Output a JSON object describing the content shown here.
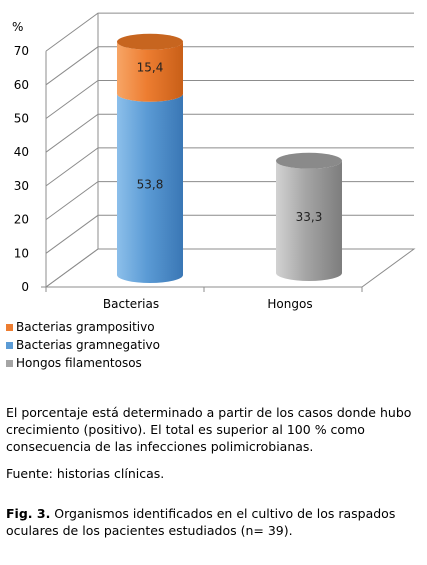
{
  "chart_data": {
    "type": "bar",
    "stacked": true,
    "three_d": true,
    "ylabel": "%",
    "ylim": [
      0,
      70
    ],
    "yticks": [
      "0",
      "10",
      "20",
      "30",
      "40",
      "50",
      "60",
      "70"
    ],
    "grid": true,
    "categories": [
      "Bacterias",
      "Hongos"
    ],
    "series": [
      {
        "name": "Bacterias grampositivo",
        "values": [
          15.4,
          null
        ],
        "labels": [
          "15,4",
          ""
        ],
        "color": "#ED7D31"
      },
      {
        "name": "Bacterias gramnegativo",
        "values": [
          53.8,
          null
        ],
        "labels": [
          "53,8",
          ""
        ],
        "color": "#5B9BD5"
      },
      {
        "name": "Hongos filamentosos",
        "values": [
          null,
          33.3
        ],
        "labels": [
          "",
          "33,3"
        ],
        "color": "#A5A5A5"
      }
    ],
    "legend_position": "bottom-left"
  },
  "notes": {
    "percentage": "El porcentaje está determinado a partir de los casos donde hubo crecimiento (positivo). El total es superior al 100 % como consecuencia de las infecciones polimicrobianas.",
    "source": "Fuente: historias clínicas."
  },
  "caption": {
    "label": "Fig. 3.",
    "text": " Organismos identificados en el cultivo de los raspados oculares de los pacientes estudiados (n= 39)."
  }
}
